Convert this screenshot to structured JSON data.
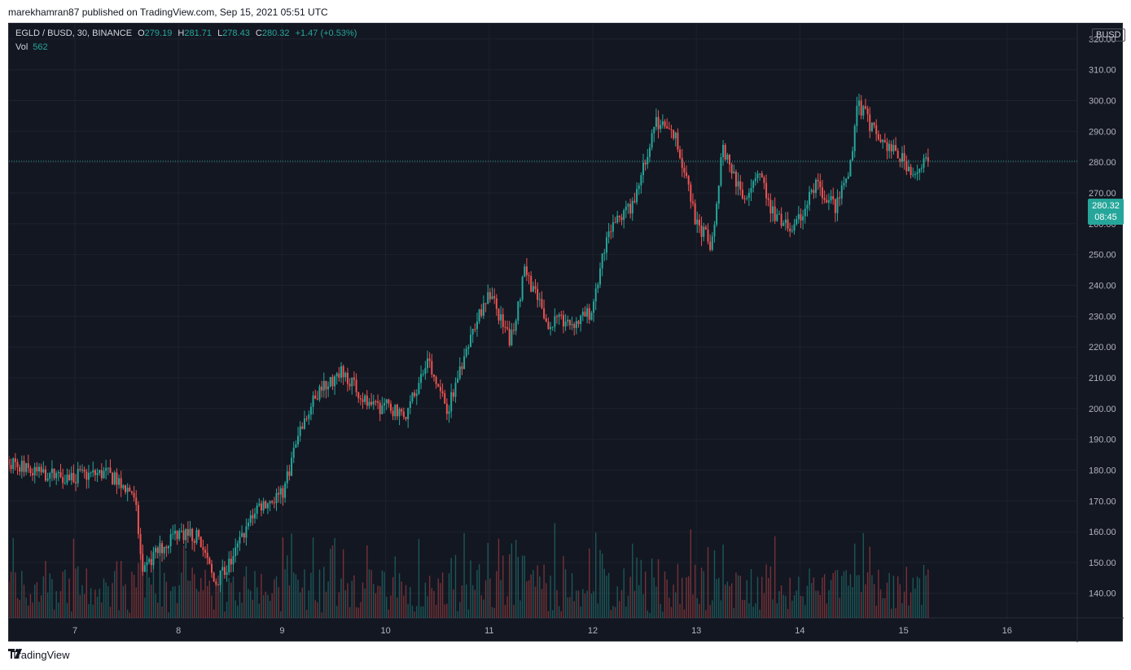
{
  "publisher_text": "marekhamran87 published on TradingView.com, Sep 15, 2021 05:51 UTC",
  "legend": {
    "symbol": "EGLD / BUSD, 30, BINANCE",
    "open_label": "O",
    "open": "279.19",
    "high_label": "H",
    "high": "281.71",
    "low_label": "L",
    "low": "278.43",
    "close_label": "C",
    "close": "280.32",
    "change": "+1.47 (+0.53%)",
    "vol_label": "Vol",
    "vol": "562"
  },
  "currency_badge": "BUSD",
  "current_price": {
    "price": "280.32",
    "countdown": "08:45"
  },
  "footer_brand": "TradingView",
  "colors": {
    "up": "#26a69a",
    "down": "#ef5350",
    "background": "#131722"
  },
  "chart_data": {
    "type": "candlestick",
    "y_axis_ticks": [
      "320.00",
      "310.00",
      "300.00",
      "290.00",
      "280.00",
      "270.00",
      "260.00",
      "250.00",
      "240.00",
      "230.00",
      "220.00",
      "210.00",
      "200.00",
      "190.00",
      "180.00",
      "170.00",
      "160.00",
      "150.00",
      "140.00"
    ],
    "x_axis_ticks": [
      "7",
      "8",
      "9",
      "10",
      "11",
      "12",
      "13",
      "14",
      "15",
      "16"
    ],
    "ylim": [
      132,
      325
    ],
    "current_price_line": 280.32,
    "day_closes": [
      [
        6.3,
        184
      ],
      [
        6.6,
        179
      ],
      [
        7.0,
        178
      ],
      [
        7.3,
        179
      ],
      [
        7.55,
        173
      ],
      [
        7.6,
        165
      ],
      [
        7.65,
        145
      ],
      [
        7.75,
        152
      ],
      [
        8.0,
        160
      ],
      [
        8.2,
        158
      ],
      [
        8.35,
        143
      ],
      [
        8.5,
        150
      ],
      [
        8.75,
        168
      ],
      [
        9.0,
        172
      ],
      [
        9.15,
        190
      ],
      [
        9.35,
        206
      ],
      [
        9.6,
        212
      ],
      [
        9.85,
        200
      ],
      [
        10.0,
        201
      ],
      [
        10.2,
        198
      ],
      [
        10.4,
        215
      ],
      [
        10.6,
        200
      ],
      [
        10.8,
        222
      ],
      [
        11.0,
        238
      ],
      [
        11.2,
        222
      ],
      [
        11.35,
        245
      ],
      [
        11.55,
        228
      ],
      [
        11.85,
        228
      ],
      [
        12.0,
        232
      ],
      [
        12.15,
        258
      ],
      [
        12.4,
        266
      ],
      [
        12.6,
        294
      ],
      [
        12.8,
        288
      ],
      [
        13.0,
        260
      ],
      [
        13.15,
        253
      ],
      [
        13.25,
        285
      ],
      [
        13.45,
        268
      ],
      [
        13.6,
        278
      ],
      [
        13.75,
        262
      ],
      [
        13.95,
        258
      ],
      [
        14.15,
        273
      ],
      [
        14.35,
        265
      ],
      [
        14.5,
        280
      ],
      [
        14.55,
        300
      ],
      [
        14.75,
        288
      ],
      [
        14.95,
        282
      ],
      [
        15.1,
        277
      ],
      [
        15.25,
        280.32
      ]
    ],
    "volume_note": "volume bars shown at bottom of price pane"
  }
}
